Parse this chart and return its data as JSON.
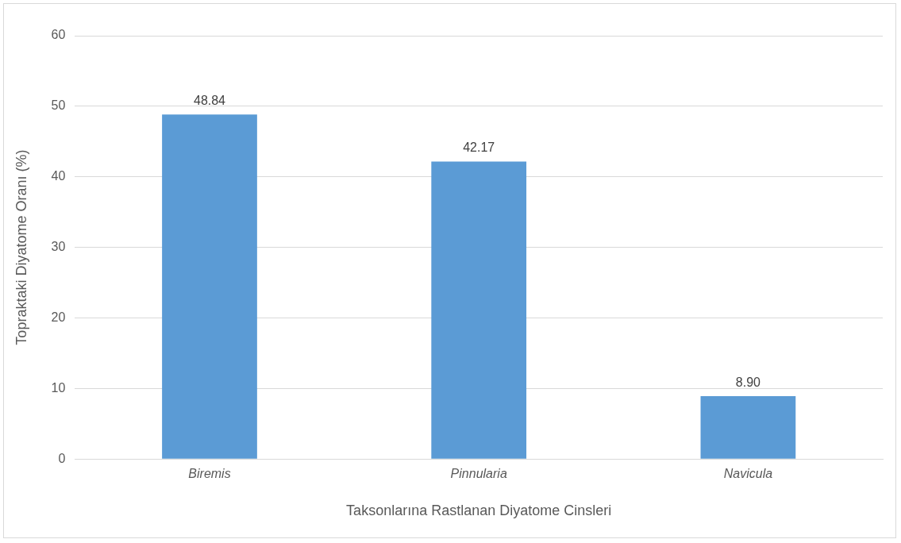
{
  "chart_data": {
    "type": "bar",
    "xlabel": "Taksonlarına Rastlanan Diyatome Cinsleri",
    "ylabel": "Topraktaki Diyatome Oranı (%)",
    "categories": [
      "Biremis",
      "Pinnularia",
      "Navicula"
    ],
    "values": [
      48.84,
      42.17,
      8.9
    ],
    "value_labels": [
      "48.84",
      "42.17",
      "8.90"
    ],
    "color": "#5b9bd5",
    "ylim": [
      0,
      60
    ],
    "yticks": [
      0,
      10,
      20,
      30,
      40,
      50,
      60
    ],
    "grid": "y",
    "legend": false
  }
}
